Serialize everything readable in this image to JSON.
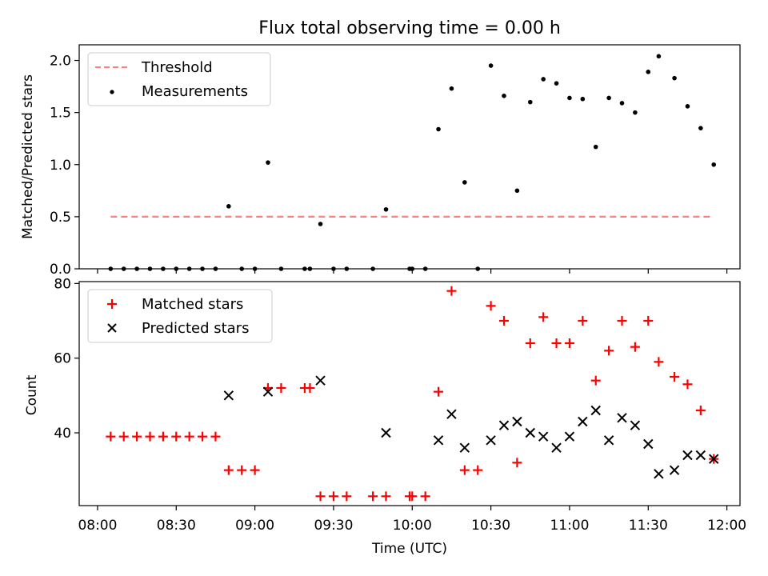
{
  "chart_data": [
    {
      "type": "scatter",
      "title": "Flux total observing time = 0.00 h",
      "xlabel": "",
      "ylabel": "Matched/Predicted stars",
      "x_unit": "time (UTC)",
      "xlim": [
        "07:53",
        "12:05"
      ],
      "ylim": [
        0,
        2.15
      ],
      "yticks": [
        0.0,
        0.5,
        1.0,
        1.5,
        2.0
      ],
      "ytick_labels": [
        "0.0",
        "0.5",
        "1.0",
        "1.5",
        "2.0"
      ],
      "legend_position": "upper left",
      "legend": [
        {
          "label": "Threshold",
          "style": "dashed-line",
          "color": "#ff7f7f"
        },
        {
          "label": "Measurements",
          "style": "dot",
          "color": "#000000"
        }
      ],
      "threshold": {
        "value": 0.5,
        "x_start": "08:05",
        "x_end": "11:55"
      },
      "series": [
        {
          "name": "Measurements",
          "color": "#000000",
          "marker": "dot",
          "x": [
            "08:05",
            "08:10",
            "08:15",
            "08:20",
            "08:25",
            "08:30",
            "08:35",
            "08:40",
            "08:45",
            "08:50",
            "08:55",
            "09:00",
            "09:05",
            "09:10",
            "09:19",
            "09:21",
            "09:25",
            "09:30",
            "09:35",
            "09:45",
            "09:50",
            "09:59",
            "10:00",
            "10:05",
            "10:10",
            "10:15",
            "10:20",
            "10:25",
            "10:30",
            "10:35",
            "10:40",
            "10:45",
            "10:50",
            "10:55",
            "11:00",
            "11:05",
            "11:10",
            "11:15",
            "11:20",
            "11:25",
            "11:30",
            "11:34",
            "11:40",
            "11:45",
            "11:50",
            "11:55"
          ],
          "y": [
            0.0,
            0.0,
            0.0,
            0.0,
            0.0,
            0.0,
            0.0,
            0.0,
            0.0,
            0.6,
            0.0,
            0.0,
            1.02,
            0.0,
            0.0,
            0.0,
            0.43,
            0.0,
            0.0,
            0.0,
            0.57,
            0.0,
            0.0,
            0.0,
            1.34,
            1.73,
            0.83,
            0.0,
            1.95,
            1.66,
            0.75,
            1.6,
            1.82,
            1.78,
            1.64,
            1.63,
            1.17,
            1.64,
            1.59,
            1.5,
            1.89,
            2.04,
            1.83,
            1.56,
            1.35,
            1.0
          ]
        }
      ]
    },
    {
      "type": "scatter",
      "title": "",
      "xlabel": "Time (UTC)",
      "ylabel": "Count",
      "x_unit": "time (UTC)",
      "xlim": [
        "07:53",
        "12:05"
      ],
      "ylim": [
        20.5,
        80.5
      ],
      "yticks": [
        40,
        60,
        80
      ],
      "ytick_labels": [
        "40",
        "60",
        "80"
      ],
      "xticks": [
        "08:00",
        "08:30",
        "09:00",
        "09:30",
        "10:00",
        "10:30",
        "11:00",
        "11:30",
        "12:00"
      ],
      "xtick_labels": [
        "08:00",
        "08:30",
        "09:00",
        "09:30",
        "10:00",
        "10:30",
        "11:00",
        "11:30",
        "12:00"
      ],
      "legend_position": "upper left",
      "legend": [
        {
          "label": "Matched stars",
          "style": "plus",
          "color": "#ff0000"
        },
        {
          "label": "Predicted stars",
          "style": "x",
          "color": "#000000"
        }
      ],
      "series": [
        {
          "name": "Matched stars",
          "color": "#ff0000",
          "marker": "plus",
          "x": [
            "08:05",
            "08:10",
            "08:15",
            "08:20",
            "08:25",
            "08:30",
            "08:35",
            "08:40",
            "08:45",
            "08:50",
            "08:55",
            "09:00",
            "09:05",
            "09:10",
            "09:19",
            "09:21",
            "09:25",
            "09:30",
            "09:35",
            "09:45",
            "09:50",
            "09:59",
            "10:00",
            "10:05",
            "10:10",
            "10:15",
            "10:20",
            "10:25",
            "10:30",
            "10:35",
            "10:40",
            "10:45",
            "10:50",
            "10:55",
            "11:00",
            "11:05",
            "11:10",
            "11:15",
            "11:20",
            "11:25",
            "11:30",
            "11:34",
            "11:40",
            "11:45",
            "11:50",
            "11:55"
          ],
          "y": [
            39,
            39,
            39,
            39,
            39,
            39,
            39,
            39,
            39,
            30,
            30,
            30,
            52,
            52,
            52,
            52,
            23,
            23,
            23,
            23,
            23,
            23,
            23,
            23,
            51,
            78,
            30,
            30,
            74,
            70,
            32,
            64,
            71,
            64,
            64,
            70,
            54,
            62,
            70,
            63,
            70,
            59,
            55,
            53,
            46,
            33
          ]
        },
        {
          "name": "Predicted stars",
          "color": "#000000",
          "marker": "x",
          "x": [
            "08:50",
            "09:05",
            "09:25",
            "09:50",
            "10:10",
            "10:15",
            "10:20",
            "10:30",
            "10:35",
            "10:40",
            "10:45",
            "10:50",
            "10:55",
            "11:00",
            "11:05",
            "11:10",
            "11:15",
            "11:20",
            "11:25",
            "11:30",
            "11:34",
            "11:40",
            "11:45",
            "11:50",
            "11:55"
          ],
          "y": [
            50,
            51,
            54,
            40,
            38,
            45,
            36,
            38,
            42,
            43,
            40,
            39,
            36,
            39,
            43,
            46,
            38,
            44,
            42,
            37,
            29,
            30,
            34,
            34,
            33
          ]
        }
      ]
    }
  ]
}
